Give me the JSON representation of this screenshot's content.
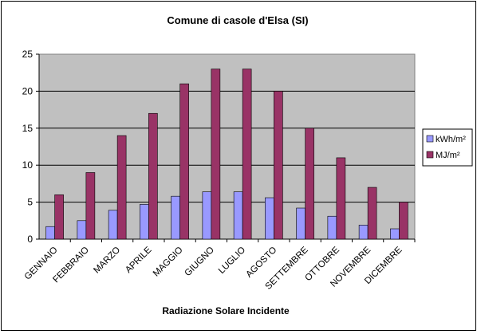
{
  "chart_data": {
    "type": "bar",
    "title": "Comune di casole d'Elsa (SI)",
    "xlabel": "Radiazione Solare Incidente",
    "ylabel": "",
    "ylim": [
      0,
      25
    ],
    "yticks": [
      "0",
      "5",
      "10",
      "15",
      "20",
      "25"
    ],
    "grid": true,
    "legend_position": "right",
    "categories": [
      "GENNAIO",
      "FEBBRAIO",
      "MARZO",
      "APRILE",
      "MAGGIO",
      "GIUGNO",
      "LUGLIO",
      "AGOSTO",
      "SETTEMBRE",
      "OTTOBRE",
      "NOVEMBRE",
      "DICEMBRE"
    ],
    "series": [
      {
        "name": "kWh/m²",
        "color": "#9999ff",
        "values": [
          1.7,
          2.5,
          3.9,
          4.7,
          5.8,
          6.4,
          6.4,
          5.6,
          4.2,
          3.1,
          1.9,
          1.4
        ]
      },
      {
        "name": "MJ/m²",
        "color": "#993366",
        "values": [
          6,
          9,
          14,
          17,
          21,
          23,
          23,
          20,
          15,
          11,
          7,
          5
        ]
      }
    ],
    "plot_background": "#c0c0c0"
  }
}
